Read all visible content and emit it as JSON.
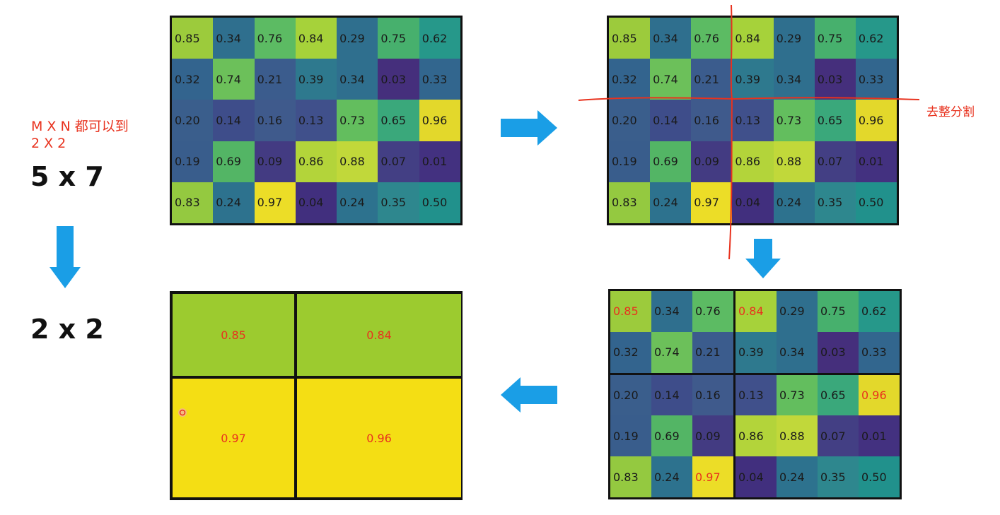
{
  "notes": {
    "mxn": "M X N 都可以到",
    "two_by_two": "2 X 2",
    "size_in": "5 x 7",
    "size_out": "2 x 2",
    "split_label": "去整分割"
  },
  "matrix": [
    [
      "0.85",
      "0.34",
      "0.76",
      "0.84",
      "0.29",
      "0.75",
      "0.62"
    ],
    [
      "0.32",
      "0.74",
      "0.21",
      "0.39",
      "0.34",
      "0.03",
      "0.33"
    ],
    [
      "0.20",
      "0.14",
      "0.16",
      "0.13",
      "0.73",
      "0.65",
      "0.96"
    ],
    [
      "0.19",
      "0.69",
      "0.09",
      "0.86",
      "0.88",
      "0.07",
      "0.01"
    ],
    [
      "0.83",
      "0.24",
      "0.97",
      "0.04",
      "0.24",
      "0.35",
      "0.50"
    ]
  ],
  "colors": [
    [
      "#9ccb3c",
      "#2f6f8e",
      "#5cbb63",
      "#a6d23a",
      "#2f6f8e",
      "#47b06d",
      "#26988a"
    ],
    [
      "#33648e",
      "#6cc05a",
      "#3b5c8d",
      "#2e798e",
      "#2f6f8e",
      "#452f7c",
      "#32668e"
    ],
    [
      "#3a5e8c",
      "#3e4d8a",
      "#3f5a8c",
      "#40508b",
      "#63be5e",
      "#3aa87b",
      "#e3d82b"
    ],
    [
      "#395d8c",
      "#53b565",
      "#433b82",
      "#b3d43a",
      "#c1d83a",
      "#433f84",
      "#433180"
    ],
    [
      "#94c940",
      "#2d728e",
      "#ecdd27",
      "#412f7e",
      "#2d728e",
      "#2e878e",
      "#21918c"
    ]
  ],
  "pooled": {
    "values": [
      [
        "0.85",
        "0.84"
      ],
      [
        "0.97",
        "0.96"
      ]
    ],
    "colors": [
      [
        "#9ccb2f",
        "#9ccb2f"
      ],
      [
        "#f4de14",
        "#f4de14"
      ]
    ]
  },
  "highlights": [
    [
      0,
      0
    ],
    [
      0,
      3
    ],
    [
      2,
      6
    ],
    [
      4,
      2
    ]
  ]
}
